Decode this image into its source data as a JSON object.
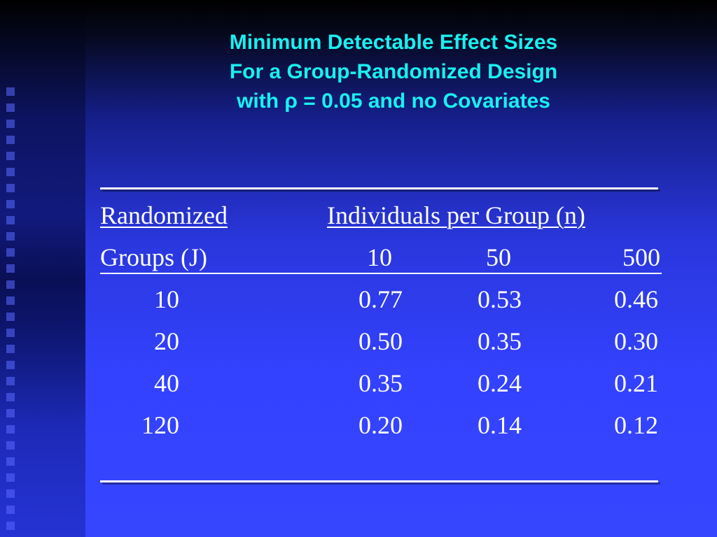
{
  "slide": {
    "title_lines": [
      "Minimum Detectable Effect Sizes",
      "For a Group-Randomized Design",
      "with ρ = 0.05 and no Covariates"
    ]
  },
  "table": {
    "header_left_1": "Randomized",
    "header_left_2": "Groups (J)",
    "header_group": "Individuals per Group (n)",
    "n_values": [
      "10",
      "50",
      "500"
    ],
    "rows": [
      {
        "j": "10",
        "values": [
          "0.77",
          "0.53",
          "0.46"
        ]
      },
      {
        "j": "20",
        "values": [
          "0.50",
          "0.35",
          "0.30"
        ]
      },
      {
        "j": "40",
        "values": [
          "0.35",
          "0.24",
          "0.21"
        ]
      },
      {
        "j": "120",
        "values": [
          "0.20",
          "0.14",
          "0.12"
        ]
      }
    ]
  },
  "colors": {
    "title": "#19f0f0",
    "text": "#ffffff",
    "background": "#3342ff"
  }
}
